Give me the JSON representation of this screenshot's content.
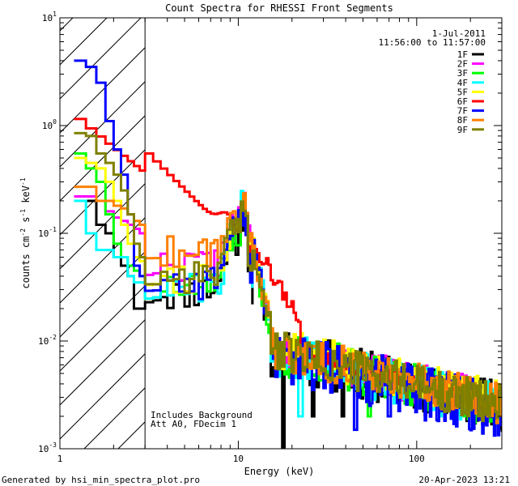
{
  "chart_data": {
    "type": "line",
    "title": "Count Spectra for RHESSI Front Segments",
    "xlabel": "Energy (keV)",
    "ylabel_parts": [
      "counts cm",
      "-2",
      " s",
      "-1",
      " keV",
      "-1"
    ],
    "x_scale": "log",
    "y_scale": "log",
    "xlim": [
      1,
      300
    ],
    "ylim": [
      0.001,
      10
    ],
    "x_tick_labels": [
      {
        "value": 1,
        "label": "1"
      },
      {
        "value": 10,
        "label": "10"
      },
      {
        "value": 100,
        "label": "100"
      }
    ],
    "y_tick_labels": [
      {
        "value": 10,
        "base": "10",
        "exp": "1"
      },
      {
        "value": 1,
        "base": "10",
        "exp": "0"
      },
      {
        "value": 0.1,
        "base": "10",
        "exp": "-1"
      },
      {
        "value": 0.01,
        "base": "10",
        "exp": "-2"
      },
      {
        "value": 0.001,
        "base": "10",
        "exp": "-3"
      }
    ],
    "date": "1-Jul-2011",
    "time_range": "11:56:00 to 11:57:00",
    "hatched_region_max_keV": 3,
    "annotations": [
      "Includes Background",
      "Att A0, FDecim 1"
    ],
    "series": [
      {
        "name": "1F",
        "color": "#000000",
        "kind": 1,
        "low": [
          0.2,
          0.2,
          0.12,
          0.1,
          0.06,
          0.05,
          0.04,
          0.02,
          0.02
        ],
        "plateau": 0.028,
        "peak": 0.12,
        "base": 0.006,
        "noise": 0.5,
        "dips": [
          [
            17.5,
            0.0008
          ],
          [
            26,
            0.002
          ],
          [
            38,
            0.002
          ]
        ],
        "seed": 11
      },
      {
        "name": "2F",
        "color": "#ff00ff",
        "kind": 1,
        "low": [
          0.22,
          0.22,
          0.2,
          0.16,
          0.14,
          0.13,
          0.12,
          0.11,
          0.1
        ],
        "plateau": 0.05,
        "peak": 0.13,
        "base": 0.0065,
        "noise": 0.4,
        "dips": [],
        "seed": 22
      },
      {
        "name": "3F",
        "color": "#00ff00",
        "kind": 1,
        "low": [
          0.55,
          0.4,
          0.3,
          0.15,
          0.08,
          0.06,
          0.05,
          0.045,
          0.04
        ],
        "plateau": 0.03,
        "peak": 0.12,
        "base": 0.0062,
        "noise": 0.45,
        "dips": [
          [
            54,
            0.002
          ]
        ],
        "seed": 33
      },
      {
        "name": "4F",
        "color": "#00ffff",
        "kind": 1,
        "low": [
          0.2,
          0.1,
          0.07,
          0.07,
          0.06,
          0.06,
          0.04,
          0.035,
          0.035
        ],
        "plateau": 0.03,
        "peak": 0.17,
        "base": 0.006,
        "noise": 0.45,
        "dips": [
          [
            22,
            0.002
          ]
        ],
        "seed": 44
      },
      {
        "name": "5F",
        "color": "#ffff00",
        "kind": 1,
        "low": [
          0.5,
          0.45,
          0.4,
          0.3,
          0.2,
          0.12,
          0.08,
          0.06,
          0.055
        ],
        "plateau": 0.04,
        "peak": 0.15,
        "base": 0.0068,
        "noise": 0.4,
        "dips": [],
        "seed": 55
      },
      {
        "name": "6F",
        "color": "#ff0000",
        "kind": 2,
        "low": [],
        "plateau": 0,
        "peak": 0,
        "base": 0.0068,
        "noise": 0.35,
        "dips": [],
        "seed": 66
      },
      {
        "name": "7F",
        "color": "#0000ff",
        "kind": 1,
        "low": [
          4,
          3.5,
          2.5,
          1.1,
          0.6,
          0.35,
          0.15,
          0.05,
          0.04
        ],
        "plateau": 0.035,
        "peak": 0.15,
        "base": 0.0055,
        "noise": 0.55,
        "dips": [
          [
            45,
            0.0015
          ],
          [
            70,
            0.002
          ]
        ],
        "seed": 77
      },
      {
        "name": "8F",
        "color": "#ff8000",
        "kind": 1,
        "low": [
          0.27,
          0.27,
          0.2,
          0.2,
          0.18,
          0.17,
          0.15,
          0.13,
          0.12
        ],
        "plateau": 0.07,
        "peak": 0.14,
        "base": 0.0065,
        "noise": 0.4,
        "dips": [],
        "seed": 88
      },
      {
        "name": "9F",
        "color": "#808000",
        "kind": 1,
        "low": [
          0.85,
          0.8,
          0.55,
          0.45,
          0.35,
          0.25,
          0.15,
          0.08,
          0.06
        ],
        "plateau": 0.04,
        "peak": 0.13,
        "base": 0.0063,
        "noise": 0.4,
        "dips": [],
        "seed": 99
      }
    ]
  },
  "footer": {
    "generated_by": "Generated by hsi_min_spectra_plot.pro",
    "timestamp": "20-Apr-2023 13:21"
  }
}
